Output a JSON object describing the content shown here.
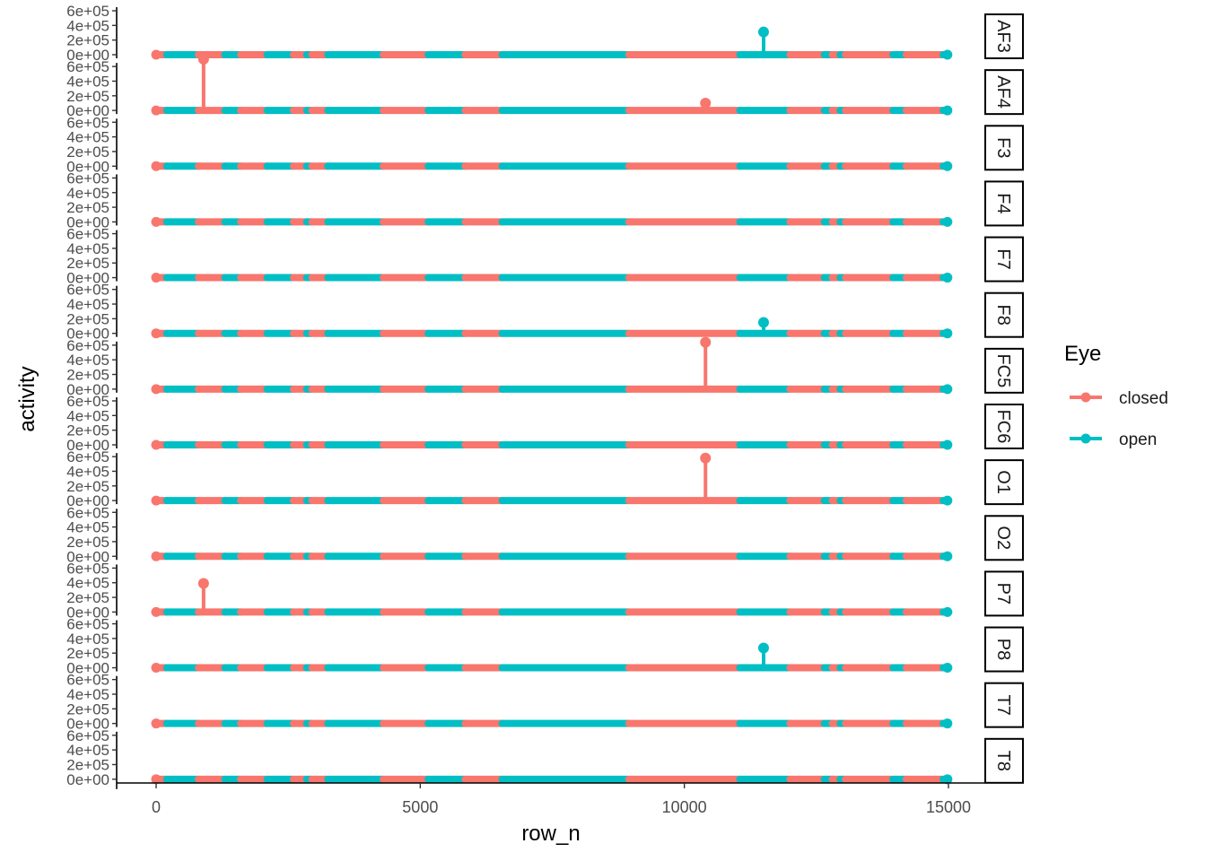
{
  "chart_data": {
    "type": "line",
    "title": "",
    "xlabel": "row_n",
    "ylabel": "activity",
    "xlim": [
      0,
      15000
    ],
    "ylim": [
      0,
      600000
    ],
    "x_ticks": [
      0,
      5000,
      10000,
      15000
    ],
    "x_tick_labels": [
      "0",
      "5000",
      "10000",
      "15000"
    ],
    "y_ticks": [
      0,
      200000,
      400000,
      600000
    ],
    "y_tick_labels": [
      "0e+00",
      "2e+05",
      "4e+05",
      "6e+05"
    ],
    "grid": false,
    "legend": {
      "title": "Eye",
      "position": "right",
      "entries": [
        {
          "label": "closed",
          "color": "#F8766D"
        },
        {
          "label": "open",
          "color": "#00BFC4"
        }
      ]
    },
    "eye_segments": [
      {
        "from": 0,
        "to": 200,
        "eye": "closed"
      },
      {
        "from": 200,
        "to": 800,
        "eye": "open"
      },
      {
        "from": 800,
        "to": 1300,
        "eye": "closed"
      },
      {
        "from": 1300,
        "to": 1600,
        "eye": "open"
      },
      {
        "from": 1600,
        "to": 2100,
        "eye": "closed"
      },
      {
        "from": 2100,
        "to": 2600,
        "eye": "open"
      },
      {
        "from": 2600,
        "to": 2850,
        "eye": "closed"
      },
      {
        "from": 2850,
        "to": 2950,
        "eye": "open"
      },
      {
        "from": 2950,
        "to": 3250,
        "eye": "closed"
      },
      {
        "from": 3250,
        "to": 4300,
        "eye": "open"
      },
      {
        "from": 4300,
        "to": 5150,
        "eye": "closed"
      },
      {
        "from": 5150,
        "to": 5850,
        "eye": "open"
      },
      {
        "from": 5850,
        "to": 6550,
        "eye": "closed"
      },
      {
        "from": 6550,
        "to": 8950,
        "eye": "open"
      },
      {
        "from": 8950,
        "to": 11050,
        "eye": "closed"
      },
      {
        "from": 11050,
        "to": 12000,
        "eye": "open"
      },
      {
        "from": 12000,
        "to": 12650,
        "eye": "closed"
      },
      {
        "from": 12650,
        "to": 12800,
        "eye": "open"
      },
      {
        "from": 12800,
        "to": 12950,
        "eye": "closed"
      },
      {
        "from": 12950,
        "to": 13050,
        "eye": "open"
      },
      {
        "from": 13050,
        "to": 13950,
        "eye": "closed"
      },
      {
        "from": 13950,
        "to": 14200,
        "eye": "open"
      },
      {
        "from": 14200,
        "to": 14900,
        "eye": "closed"
      },
      {
        "from": 14900,
        "to": 14980,
        "eye": "open"
      }
    ],
    "panels": [
      {
        "name": "AF3",
        "spikes": [
          {
            "x": 11500,
            "y": 310000,
            "eye": "open"
          }
        ]
      },
      {
        "name": "AF4",
        "spikes": [
          {
            "x": 898,
            "y": 700000,
            "eye": "closed"
          },
          {
            "x": 10400,
            "y": 100000,
            "eye": "closed"
          }
        ]
      },
      {
        "name": "F3",
        "spikes": []
      },
      {
        "name": "F4",
        "spikes": []
      },
      {
        "name": "F7",
        "spikes": []
      },
      {
        "name": "F8",
        "spikes": [
          {
            "x": 11500,
            "y": 150000,
            "eye": "open"
          }
        ]
      },
      {
        "name": "FC5",
        "spikes": [
          {
            "x": 10400,
            "y": 640000,
            "eye": "closed"
          }
        ]
      },
      {
        "name": "FC6",
        "spikes": []
      },
      {
        "name": "O1",
        "spikes": [
          {
            "x": 10400,
            "y": 580000,
            "eye": "closed"
          }
        ]
      },
      {
        "name": "O2",
        "spikes": []
      },
      {
        "name": "P7",
        "spikes": [
          {
            "x": 898,
            "y": 390000,
            "eye": "closed"
          }
        ]
      },
      {
        "name": "P8",
        "spikes": [
          {
            "x": 11500,
            "y": 270000,
            "eye": "open"
          }
        ]
      },
      {
        "name": "T7",
        "spikes": []
      },
      {
        "name": "T8",
        "spikes": []
      }
    ]
  }
}
